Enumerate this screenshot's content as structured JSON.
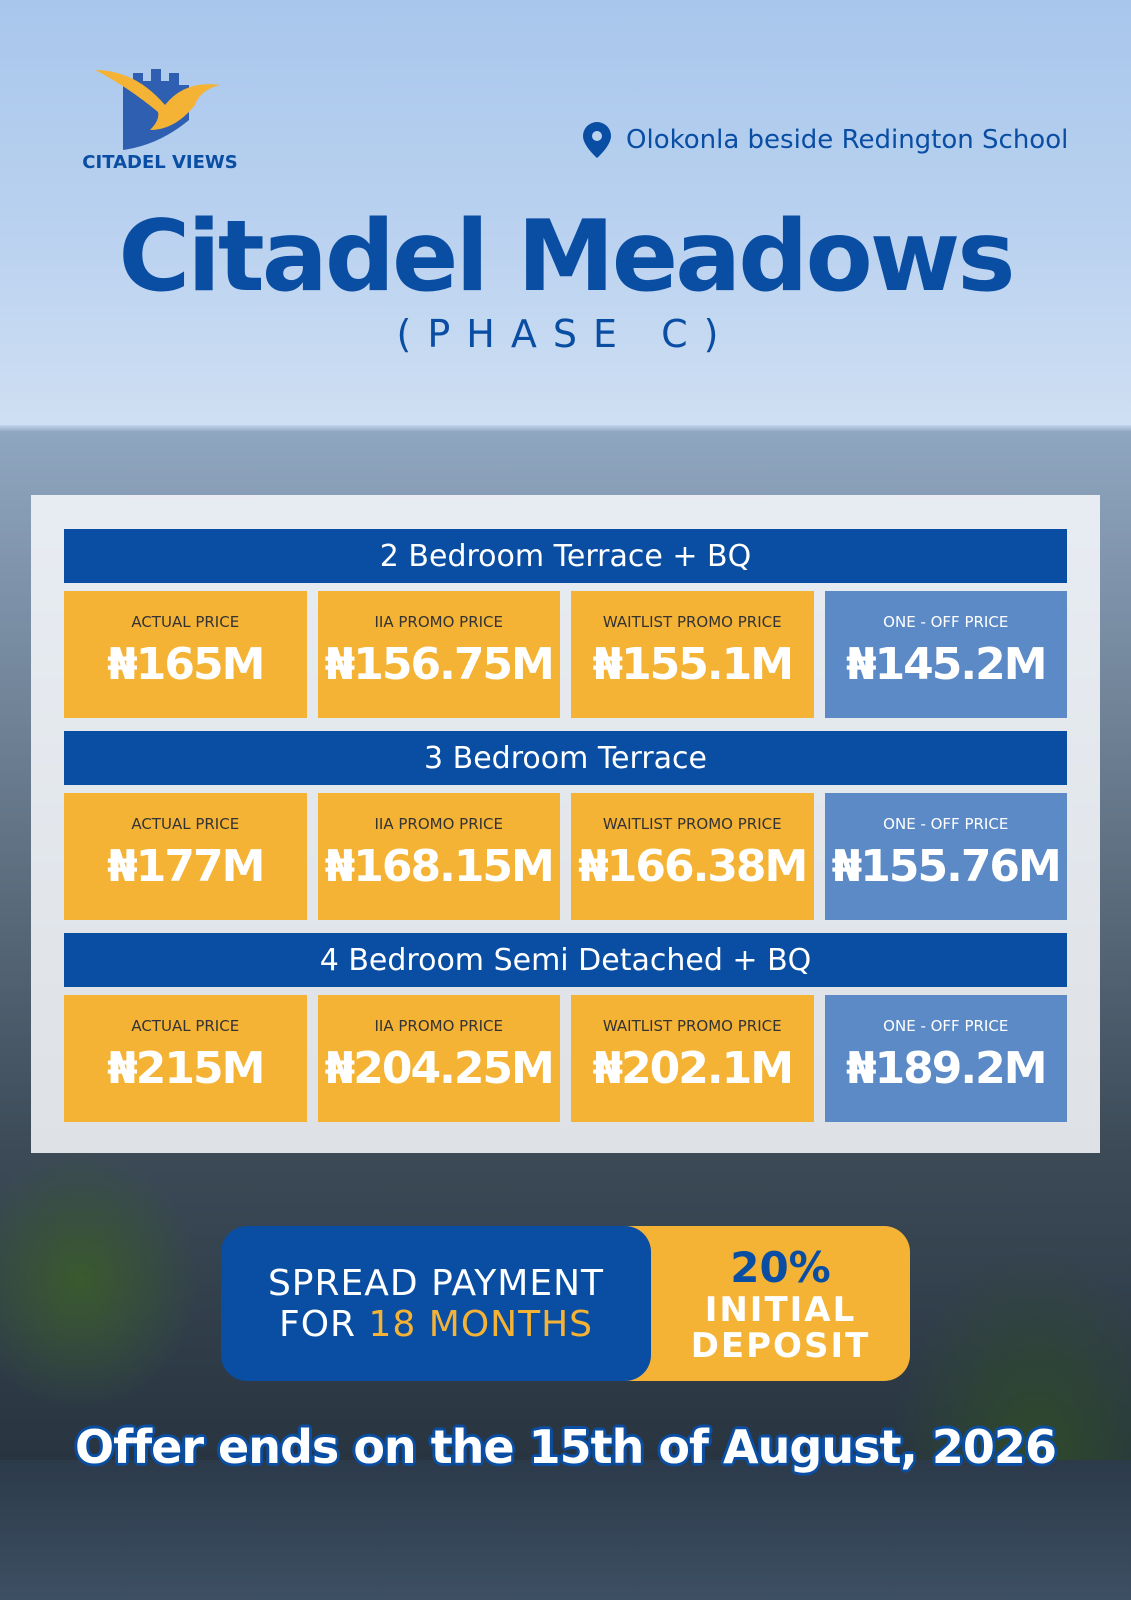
{
  "brand": "CITADEL VIEWS",
  "location": "Olokonla beside Redington School",
  "title": "Citadel Meadows",
  "subtitle": "(PHASE C)",
  "sections": [
    {
      "heading": "2 Bedroom Terrace + BQ",
      "prices": [
        {
          "label": "ACTUAL PRICE",
          "price": "₦165M"
        },
        {
          "label": "IIA PROMO PRICE",
          "price": "₦156.75M"
        },
        {
          "label": "WAITLIST PROMO PRICE",
          "price": "₦155.1M"
        },
        {
          "label": "ONE - OFF PRICE",
          "price": "₦145.2M"
        }
      ]
    },
    {
      "heading": "3 Bedroom Terrace",
      "prices": [
        {
          "label": "ACTUAL PRICE",
          "price": "₦177M"
        },
        {
          "label": "IIA PROMO PRICE",
          "price": "₦168.15M"
        },
        {
          "label": "WAITLIST PROMO PRICE",
          "price": "₦166.38M"
        },
        {
          "label": "ONE - OFF PRICE",
          "price": "₦155.76M"
        }
      ]
    },
    {
      "heading": "4 Bedroom Semi Detached + BQ",
      "prices": [
        {
          "label": "ACTUAL PRICE",
          "price": "₦215M"
        },
        {
          "label": "IIA PROMO PRICE",
          "price": "₦204.25M"
        },
        {
          "label": "WAITLIST PROMO PRICE",
          "price": "₦202.1M"
        },
        {
          "label": "ONE - OFF PRICE",
          "price": "₦189.2M"
        }
      ]
    }
  ],
  "payment": {
    "line1": "SPREAD PAYMENT",
    "line2_prefix": "FOR",
    "line2_highlight": "18 MONTHS",
    "deposit_percent": "20%",
    "deposit_line1": "INITIAL",
    "deposit_line2": "DEPOSIT"
  },
  "offer": "Offer ends on the 15th of August, 2026"
}
